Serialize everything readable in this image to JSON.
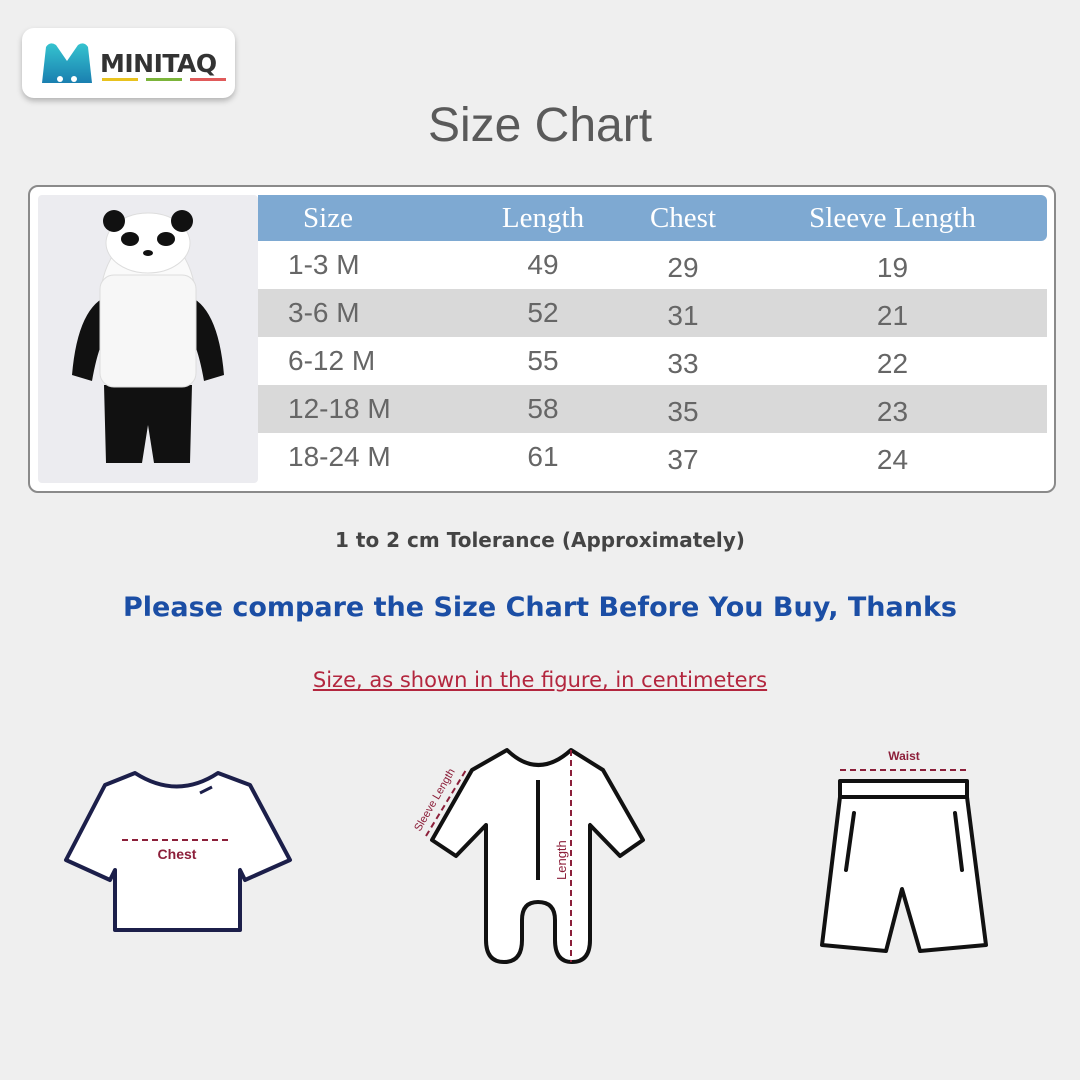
{
  "brand": {
    "name": "MINITAQ",
    "colors": {
      "accent": "#1fa0b8",
      "bars": [
        "#e8c21e",
        "#7bb43a",
        "#e05a5a"
      ]
    }
  },
  "title": "Size Chart",
  "table": {
    "headers": [
      "Size",
      "Length",
      "Chest",
      "Sleeve Length"
    ],
    "rows": [
      [
        "1-3 M",
        "49",
        "29",
        "19"
      ],
      [
        "3-6 M",
        "52",
        "31",
        "21"
      ],
      [
        "6-12 M",
        "55",
        "33",
        "22"
      ],
      [
        "12-18 M",
        "58",
        "35",
        "23"
      ],
      [
        "18-24 M",
        "61",
        "37",
        "24"
      ]
    ],
    "header_color": "#7ea9d2"
  },
  "tolerance": "1 to 2 cm Tolerance (Approximately)",
  "compare_note": "Please compare the Size Chart Before You Buy, Thanks",
  "unit_note": "Size, as shown in the figure, in centimeters",
  "diagrams": {
    "tshirt_label": "Chest",
    "romper_sleeve_label": "Sleeve Length",
    "romper_length_label": "Length",
    "shorts_label": "Waist"
  }
}
